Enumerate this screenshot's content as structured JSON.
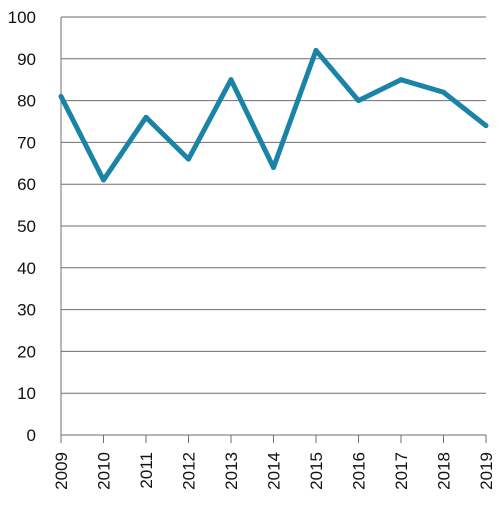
{
  "chart_data": {
    "type": "line",
    "x": [
      "2009",
      "2010",
      "2011",
      "2012",
      "2013",
      "2014",
      "2015",
      "2016",
      "2017",
      "2018",
      "2019"
    ],
    "series": [
      {
        "values": [
          81,
          61,
          76,
          66,
          85,
          64,
          92,
          80,
          85,
          82,
          74
        ],
        "color": "#1a84a6"
      }
    ],
    "ylim": [
      0,
      100
    ],
    "yticks": [
      "0",
      "10",
      "20",
      "30",
      "40",
      "50",
      "60",
      "70",
      "80",
      "90",
      "100"
    ],
    "grid": true,
    "title": "",
    "xlabel": "",
    "ylabel": ""
  }
}
